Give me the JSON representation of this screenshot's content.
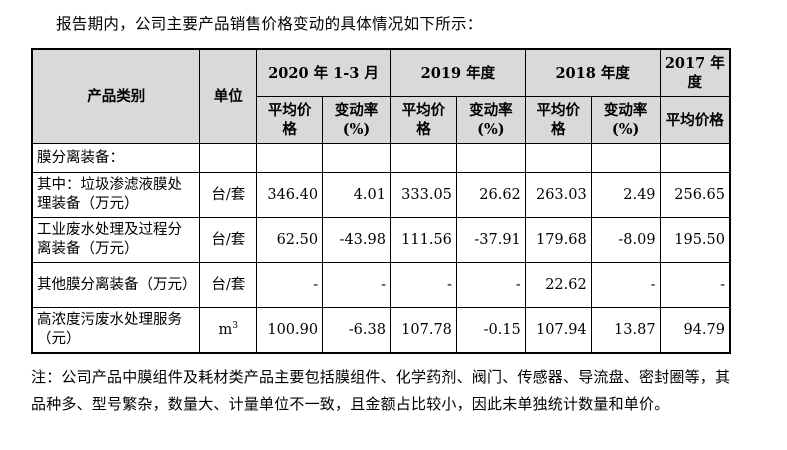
{
  "intro": "报告期内，公司主要产品销售价格变动的具体情况如下所示：",
  "table": {
    "col_category": "产品类别",
    "col_unit": "单位",
    "periods": [
      "2020 年 1-3 月",
      "2019 年度",
      "2018 年度",
      "2017 年度"
    ],
    "sub_price": "平均价格",
    "sub_change": "变动率(%)",
    "section_label": "膜分离装备：",
    "rows": [
      {
        "category": "其中：垃圾渗滤液膜处理装备（万元）",
        "unit": "台/套",
        "values": [
          "346.40",
          "4.01",
          "333.05",
          "26.62",
          "263.03",
          "2.49",
          "256.65"
        ]
      },
      {
        "category": "工业废水处理及过程分离装备（万元）",
        "unit": "台/套",
        "values": [
          "62.50",
          "-43.98",
          "111.56",
          "-37.91",
          "179.68",
          "-8.09",
          "195.50"
        ]
      },
      {
        "category": "其他膜分离装备（万元）",
        "unit": "台/套",
        "values": [
          "-",
          "-",
          "-",
          "-",
          "22.62",
          "-",
          "-"
        ]
      },
      {
        "category": "高浓度污废水处理服务（元）",
        "unit": "m",
        "unit_sup": "3",
        "values": [
          "100.90",
          "-6.38",
          "107.78",
          "-0.15",
          "107.94",
          "13.87",
          "94.79"
        ]
      }
    ]
  },
  "note": "注：公司产品中膜组件及耗材类产品主要包括膜组件、化学药剂、阀门、传感器、导流盘、密封圈等，其品种多、型号繁杂，数量大、计量单位不一致，且金额占比较小，因此未单独统计数量和单价。"
}
